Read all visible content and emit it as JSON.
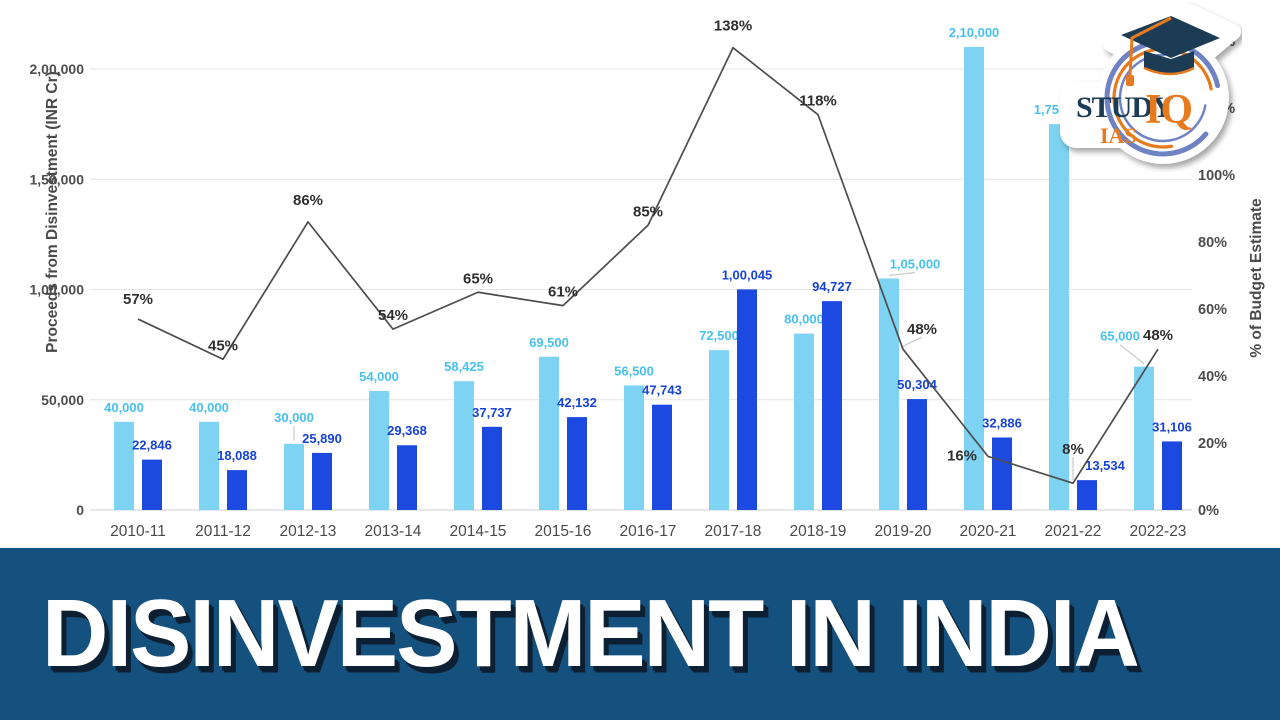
{
  "chart_data": {
    "type": "combo",
    "title": "",
    "categories": [
      "2010-11",
      "2011-12",
      "2012-13",
      "2013-14",
      "2014-15",
      "2015-16",
      "2016-17",
      "2017-18",
      "2018-19",
      "2019-20",
      "2020-21",
      "2021-22",
      "2022-23"
    ],
    "series": [
      {
        "id": "disinvestment-target-bars",
        "type": "bar",
        "color": "#7DD3F1",
        "label_color": "#47C1EF",
        "values": [
          40000,
          40000,
          30000,
          54000,
          58425,
          69500,
          56500,
          72500,
          80000,
          105000,
          210000,
          175000,
          65000
        ]
      },
      {
        "id": "disinvestment-actual-bars",
        "type": "bar",
        "color": "#1C49E0",
        "label_color": "#1743D6",
        "values": [
          22846,
          18088,
          25890,
          29368,
          37737,
          42132,
          47743,
          100045,
          94727,
          50304,
          32886,
          13534,
          31106
        ]
      },
      {
        "id": "pct-of-budget-estimate-line",
        "type": "line",
        "axis": "right",
        "color": "#4D4D4D",
        "label_color": "#2F2F2F",
        "values": [
          57,
          45,
          86,
          54,
          65,
          61,
          85,
          138,
          118,
          48,
          16,
          8,
          48
        ]
      }
    ],
    "left_axis": {
      "title": "Proceeds from Disinvestment (INR Cr)",
      "max": 200000,
      "tick_values": [
        0,
        50000,
        100000,
        150000,
        200000
      ],
      "tick_labels": [
        "0",
        "50,000",
        "1,00,000",
        "1,50,000",
        "2,00,000"
      ]
    },
    "right_axis": {
      "title": "% of Budget Estimate",
      "max": 140,
      "tick_values": [
        0,
        20,
        40,
        60,
        80,
        100,
        120,
        140
      ],
      "tick_labels": [
        "0%",
        "20%",
        "40%",
        "60%",
        "80%",
        "100%",
        "120%",
        "140%"
      ]
    },
    "grid": true,
    "legend": "none",
    "number_format": "indian"
  },
  "banner": {
    "title": "DISINVESTMENT IN INDIA",
    "bg_color": "#15517E"
  },
  "logo": {
    "study": "STUDY",
    "iq": "IQ",
    "ias": "IAS",
    "navy": "#1C3B54",
    "orange": "#E87A1E",
    "swirl_blue": "#6F83C4"
  }
}
